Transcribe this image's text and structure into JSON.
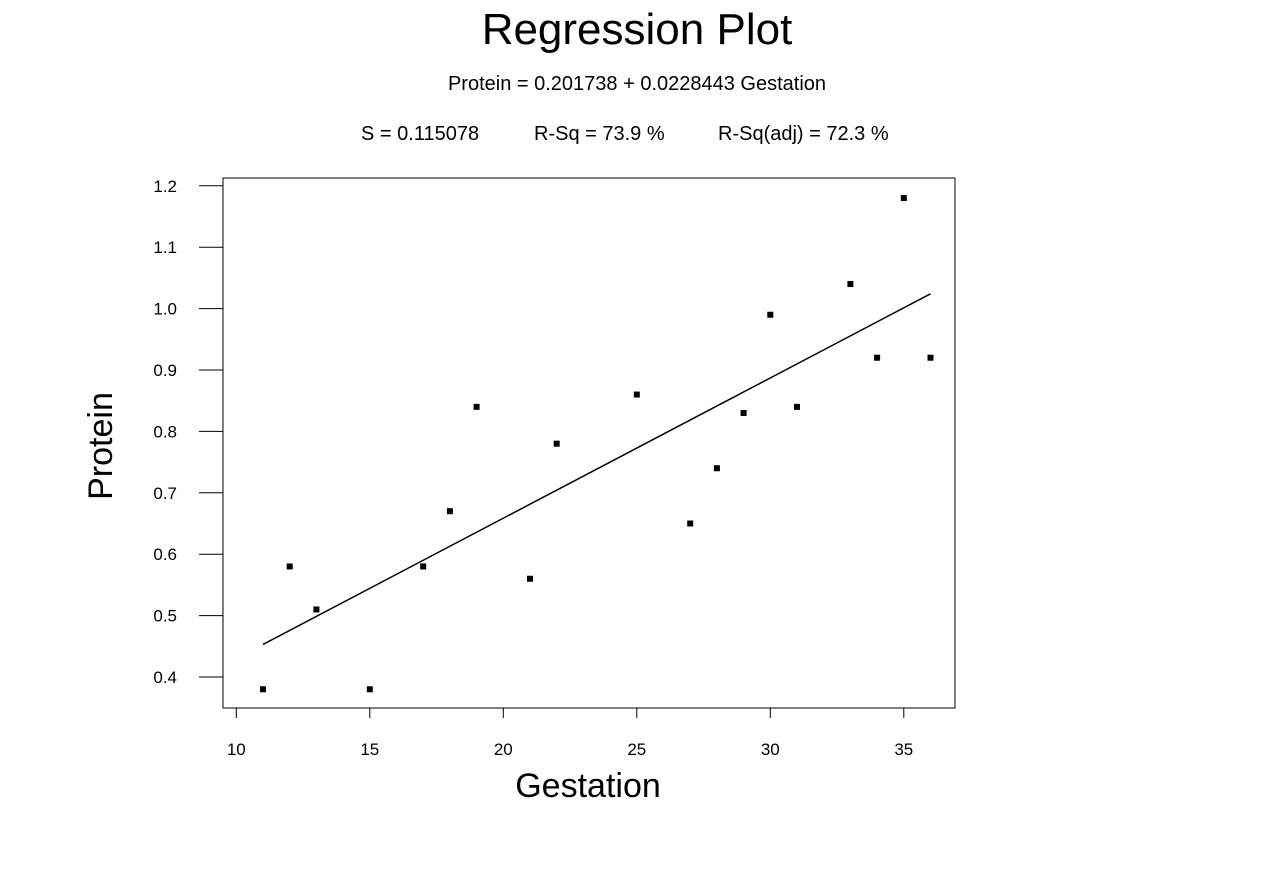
{
  "header": {
    "title": "Regression Plot",
    "equation": "Protein = 0.201738 + 0.0228443 Gestation",
    "stat_s": "S = 0.115078",
    "stat_rsq": "R-Sq = 73.9 %",
    "stat_rsqadj": "R-Sq(adj) = 72.3 %"
  },
  "chart_data": {
    "type": "scatter",
    "title": "Regression Plot",
    "subtitle": "Protein = 0.201738 + 0.0228443 Gestation",
    "xlabel": "Gestation",
    "ylabel": "Protein",
    "xlim": [
      10.5,
      38.0
    ],
    "ylim": [
      0.35,
      1.215
    ],
    "x_ticks": [
      10,
      15,
      20,
      25,
      30,
      35
    ],
    "x_tick_labels": [
      "10",
      "15",
      "20",
      "25",
      "30",
      "35"
    ],
    "y_ticks": [
      0.4,
      0.5,
      0.6,
      0.7,
      0.8,
      0.9,
      1.0,
      1.1,
      1.2
    ],
    "y_tick_labels": [
      "0.4",
      "0.5",
      "0.6",
      "0.7",
      "0.8",
      "0.9",
      "1.0",
      "1.1",
      "1.2"
    ],
    "grid": false,
    "legend": "none",
    "series": [
      {
        "points": [
          {
            "x": 11,
            "y": 0.38
          },
          {
            "x": 12,
            "y": 0.58
          },
          {
            "x": 13,
            "y": 0.51
          },
          {
            "x": 15,
            "y": 0.38
          },
          {
            "x": 17,
            "y": 0.58
          },
          {
            "x": 18,
            "y": 0.67
          },
          {
            "x": 19,
            "y": 0.84
          },
          {
            "x": 21,
            "y": 0.56
          },
          {
            "x": 22,
            "y": 0.78
          },
          {
            "x": 25,
            "y": 0.86
          },
          {
            "x": 27,
            "y": 0.65
          },
          {
            "x": 28,
            "y": 0.74
          },
          {
            "x": 29,
            "y": 0.83
          },
          {
            "x": 30,
            "y": 0.99
          },
          {
            "x": 31,
            "y": 0.84
          },
          {
            "x": 33,
            "y": 1.04
          },
          {
            "x": 34,
            "y": 0.92
          },
          {
            "x": 35,
            "y": 1.18
          },
          {
            "x": 36,
            "y": 0.92
          }
        ]
      }
    ],
    "fit_line": {
      "intercept": 0.201738,
      "slope": 0.0228443,
      "x_range": [
        11,
        36
      ]
    },
    "colors": {
      "marks": "#000000",
      "background": "#ffffff"
    }
  }
}
